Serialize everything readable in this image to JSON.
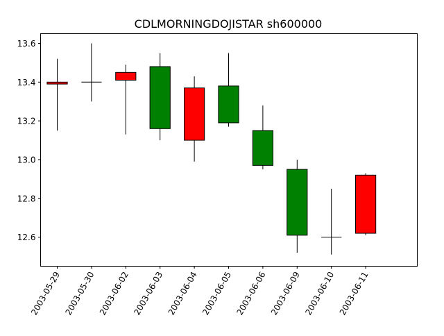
{
  "chart_data": {
    "type": "candlestick",
    "title": "CDLMORNINGDOJISTAR sh600000",
    "xlabel": "",
    "ylabel": "",
    "grid": false,
    "legend": "none",
    "ylim": [
      12.45,
      13.65
    ],
    "yticks": [
      12.6,
      12.8,
      13.0,
      13.2,
      13.4,
      13.6
    ],
    "ytick_labels": [
      "12.6",
      "12.8",
      "13.0",
      "13.2",
      "13.4",
      "13.6"
    ],
    "categories": [
      "2003-05-29",
      "2003-05-30",
      "2003-06-02",
      "2003-06-03",
      "2003-06-04",
      "2003-06-05",
      "2003-06-06",
      "2003-06-09",
      "2003-06-10",
      "2003-06-11"
    ],
    "open": [
      13.39,
      13.4,
      13.41,
      13.48,
      13.1,
      13.38,
      13.15,
      12.95,
      12.6,
      12.62
    ],
    "high": [
      13.52,
      13.6,
      13.49,
      13.55,
      13.43,
      13.55,
      13.28,
      13.0,
      12.85,
      12.93
    ],
    "low": [
      13.15,
      13.3,
      13.13,
      13.1,
      12.99,
      13.17,
      12.95,
      12.52,
      12.51,
      12.61
    ],
    "close": [
      13.4,
      13.4,
      13.45,
      13.16,
      13.37,
      13.19,
      12.97,
      12.61,
      12.6,
      12.92
    ],
    "colors": {
      "up": "#ff0000",
      "down": "#008000",
      "doji": "#000000",
      "edge": "#000000"
    }
  }
}
